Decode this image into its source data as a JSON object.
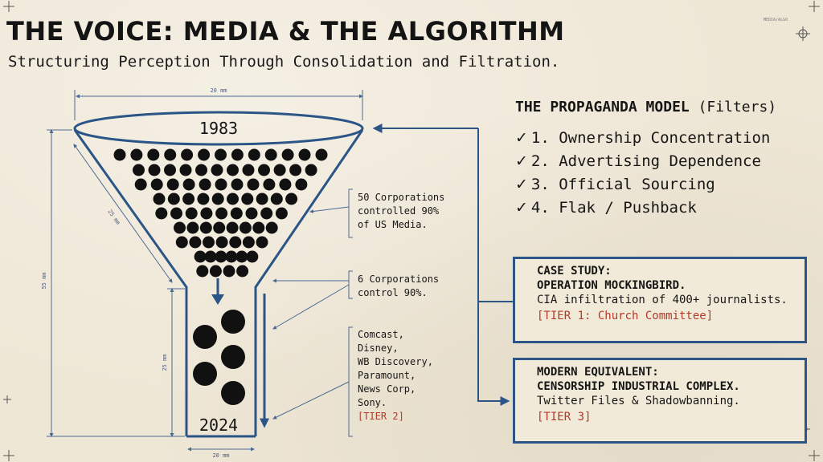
{
  "title": "THE VOICE: MEDIA & THE ALGORITHM",
  "subtitle": "Structuring Perception Through Consolidation and Filtration.",
  "tiny_tag": "MEDIA/ALGO",
  "funnel": {
    "top_year": "1983",
    "bottom_year": "2024",
    "dimensions": {
      "top_width": "20 mm",
      "bottom_width": "20 mm",
      "cone_slant": "25 mm",
      "overall_height": "55 mm",
      "stem_height": "25 mm"
    }
  },
  "annotations": {
    "corp_1983": [
      "50 Corporations",
      "controlled 90%",
      "of US Media."
    ],
    "corp_now": [
      "6 Corporations",
      "control 90%."
    ],
    "company_list": [
      "Comcast,",
      "Disney,",
      "WB Discovery,",
      "Paramount,",
      "News Corp,",
      "Sony."
    ],
    "company_tier": "[TIER 2]"
  },
  "propaganda_model": {
    "title": "THE PROPAGANDA MODEL",
    "title_suffix": "(Filters)",
    "check": "✓",
    "filters": [
      "1. Ownership Concentration",
      "2. Advertising Dependence",
      "3. Official Sourcing",
      "4. Flak / Pushback"
    ]
  },
  "case_study": {
    "heading_1": "CASE STUDY:",
    "heading_2": "OPERATION MOCKINGBIRD.",
    "body": "CIA infiltration of 400+ journalists.",
    "tier": "[TIER 1: Church Committee]"
  },
  "modern": {
    "heading_1": "MODERN EQUIVALENT:",
    "heading_2": "CENSORSHIP INDUSTRIAL COMPLEX.",
    "body": "Twitter Files & Shadowbanning.",
    "tier": "[TIER 3]"
  },
  "colors": {
    "accent_blue": "#2a5586",
    "tier_red": "#b23a2a",
    "ink": "#161616",
    "paper": "#efe7d6"
  }
}
